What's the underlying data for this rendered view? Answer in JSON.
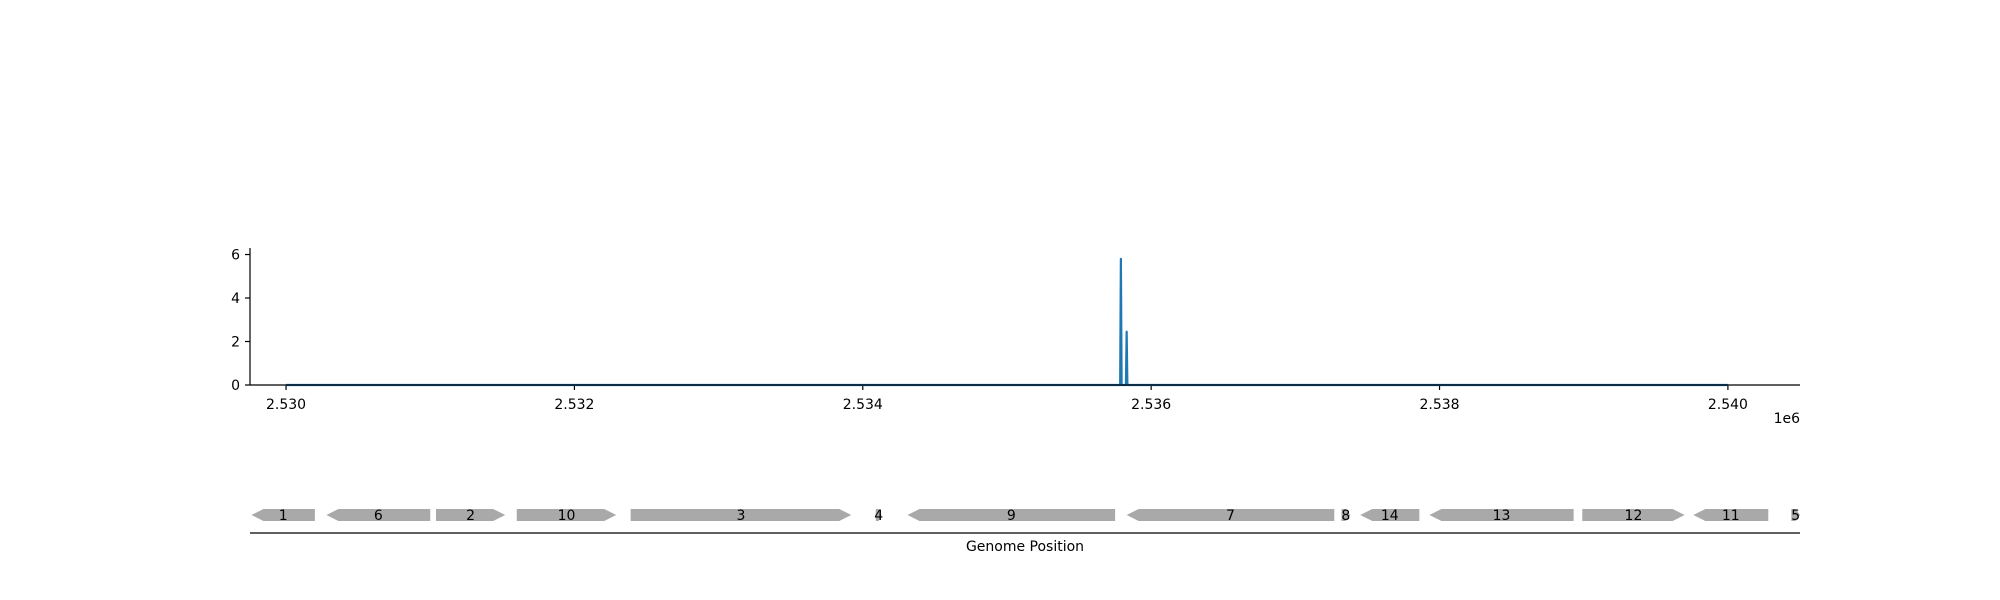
{
  "colors": {
    "signal": "#1f77b4",
    "gene_fill": "#a9a9a9",
    "axis": "#000000",
    "background": "#ffffff"
  },
  "chart_data": [
    {
      "type": "line",
      "title": "",
      "xlabel": "",
      "ylabel": "",
      "x_offset_label": "1e6",
      "xlim": [
        2529750,
        2540500
      ],
      "ylim": [
        0,
        6.3
      ],
      "x_ticks": [
        2530000,
        2532000,
        2534000,
        2536000,
        2538000,
        2540000
      ],
      "x_tick_labels": [
        "2.530",
        "2.532",
        "2.534",
        "2.536",
        "2.538",
        "2.540"
      ],
      "y_ticks": [
        0,
        2,
        4,
        6
      ],
      "y_tick_labels": [
        "0",
        "2",
        "4",
        "6"
      ],
      "grid": false,
      "series": [
        {
          "x": [
            2530000,
            2535785,
            2535790,
            2535795,
            2535825,
            2535830,
            2535835,
            2540000
          ],
          "values": [
            0,
            0,
            5.8,
            0,
            0,
            2.45,
            0,
            0
          ]
        }
      ]
    },
    {
      "type": "gene-track",
      "title": "",
      "xlabel": "Genome Position",
      "xlim": [
        2529750,
        2540500
      ],
      "genes": [
        {
          "label": "1",
          "start": 2529760,
          "end": 2530200,
          "strand": "-"
        },
        {
          "label": "6",
          "start": 2530280,
          "end": 2531000,
          "strand": "-"
        },
        {
          "label": "2",
          "start": 2531040,
          "end": 2531520,
          "strand": "+"
        },
        {
          "label": "10",
          "start": 2531600,
          "end": 2532290,
          "strand": "+"
        },
        {
          "label": "3",
          "start": 2532390,
          "end": 2533920,
          "strand": "+"
        },
        {
          "label": "4",
          "start": 2534090,
          "end": 2534130,
          "strand": "+"
        },
        {
          "label": "9",
          "start": 2534310,
          "end": 2535750,
          "strand": "-"
        },
        {
          "label": "7",
          "start": 2535830,
          "end": 2537270,
          "strand": "-"
        },
        {
          "label": "8",
          "start": 2537320,
          "end": 2537380,
          "strand": "+"
        },
        {
          "label": "14",
          "start": 2537450,
          "end": 2537860,
          "strand": "-"
        },
        {
          "label": "13",
          "start": 2537930,
          "end": 2538930,
          "strand": "-"
        },
        {
          "label": "12",
          "start": 2538990,
          "end": 2539700,
          "strand": "+"
        },
        {
          "label": "11",
          "start": 2539760,
          "end": 2540280,
          "strand": "-"
        },
        {
          "label": "5",
          "start": 2540440,
          "end": 2540500,
          "strand": "+"
        }
      ]
    }
  ]
}
